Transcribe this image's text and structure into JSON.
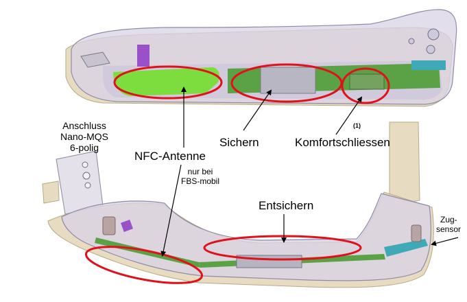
{
  "labels": {
    "anschluss": [
      "Anschluss",
      "Nano-MQS",
      "6-polig"
    ],
    "nfc_antenne": "NFC-Antenne",
    "nur_bei": [
      "nur bei",
      "FBS-mobil"
    ],
    "sichern": "Sichern",
    "komfort_note": "(1)",
    "komfortschliessen": "Komfortschliessen",
    "entsichern": "Entsichern",
    "zugsensor": [
      "Zug-",
      "sensor"
    ]
  },
  "colors": {
    "highlight": "#e0111b",
    "housing": "#d9d3e6",
    "housing_edge": "#8f8aa8",
    "base": "#e7dcc1",
    "pcb": "#5aa245",
    "antenna": "#7ddd3e",
    "purple_part": "#9a50c8",
    "teal_part": "#3fa9b8"
  }
}
